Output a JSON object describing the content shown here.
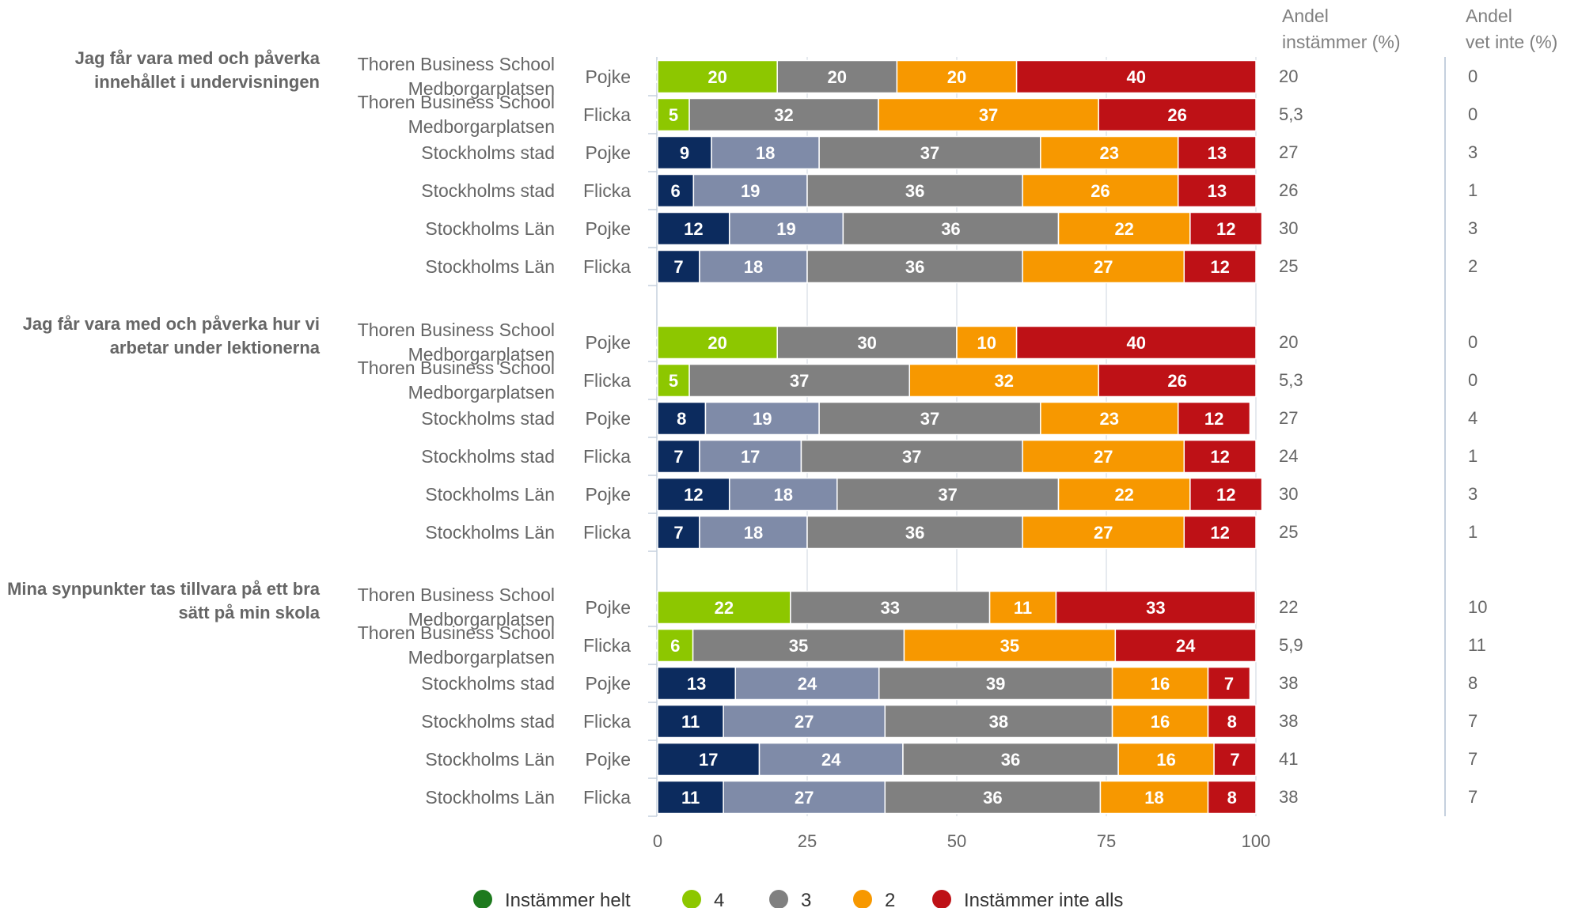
{
  "chart_data": {
    "type": "bar",
    "stacked": true,
    "orientation": "horizontal",
    "xlim": [
      0,
      100
    ],
    "xticks": [
      0,
      25,
      50,
      75,
      100
    ],
    "grid": true,
    "legend_position": "bottom",
    "column_headers": {
      "instammer": [
        "Andel",
        "instämmer (%)"
      ],
      "vet_inte": [
        "Andel",
        "vet inte (%)"
      ]
    },
    "series": [
      {
        "name": "Instämmer helt",
        "color": "#1e7a1e"
      },
      {
        "name": "4",
        "color": "#8dc700"
      },
      {
        "name": "3",
        "color": "#808080"
      },
      {
        "name": "2",
        "color": "#f79800"
      },
      {
        "name": "Instämmer inte alls",
        "color": "#be1116"
      }
    ],
    "bar_colors": {
      "thoren": [
        "#1e7a1e",
        "#8dc700",
        "#808080",
        "#f79800",
        "#be1116"
      ],
      "region": [
        "#0c2b5e",
        "#7f8ba8",
        "#808080",
        "#f79800",
        "#be1116"
      ]
    },
    "groups": [
      {
        "question": "Jag får vara med och påverka innehållet i undervisningen",
        "rows": [
          {
            "school": "Thoren Business School Medborgarplatsen",
            "gender": "Pojke",
            "scheme": "thoren",
            "values": [
              0,
              20,
              20,
              20,
              40
            ],
            "labels": [
              "0",
              "20",
              "20",
              "20",
              "40"
            ],
            "instammer": "20",
            "vet_inte": "0"
          },
          {
            "school": "Thoren Business School Medborgarplatsen",
            "gender": "Flicka",
            "scheme": "thoren",
            "values": [
              0,
              5.3,
              31.6,
              36.8,
              26.3
            ],
            "labels": [
              "0",
              "5",
              "32",
              "37",
              "26"
            ],
            "instammer": "5,3",
            "vet_inte": "0"
          },
          {
            "school": "Stockholms stad",
            "gender": "Pojke",
            "scheme": "region",
            "values": [
              9,
              18,
              37,
              23,
              13
            ],
            "labels": [
              "9",
              "18",
              "37",
              "23",
              "13"
            ],
            "instammer": "27",
            "vet_inte": "3"
          },
          {
            "school": "Stockholms stad",
            "gender": "Flicka",
            "scheme": "region",
            "values": [
              6,
              19,
              36,
              26,
              13
            ],
            "labels": [
              "6",
              "19",
              "36",
              "26",
              "13"
            ],
            "instammer": "26",
            "vet_inte": "1"
          },
          {
            "school": "Stockholms Län",
            "gender": "Pojke",
            "scheme": "region",
            "values": [
              12,
              19,
              36,
              22,
              12
            ],
            "labels": [
              "12",
              "19",
              "36",
              "22",
              "12"
            ],
            "instammer": "30",
            "vet_inte": "3"
          },
          {
            "school": "Stockholms Län",
            "gender": "Flicka",
            "scheme": "region",
            "values": [
              7,
              18,
              36,
              27,
              12
            ],
            "labels": [
              "7",
              "18",
              "36",
              "27",
              "12"
            ],
            "instammer": "25",
            "vet_inte": "2"
          }
        ]
      },
      {
        "question": "Jag får vara med och påverka hur vi arbetar under lektionerna",
        "rows": [
          {
            "school": "Thoren Business School Medborgarplatsen",
            "gender": "Pojke",
            "scheme": "thoren",
            "values": [
              0,
              20,
              30,
              10,
              40
            ],
            "labels": [
              "0",
              "20",
              "30",
              "10",
              "40"
            ],
            "instammer": "20",
            "vet_inte": "0"
          },
          {
            "school": "Thoren Business School Medborgarplatsen",
            "gender": "Flicka",
            "scheme": "thoren",
            "values": [
              0,
              5.3,
              36.8,
              31.6,
              26.3
            ],
            "labels": [
              "0",
              "5",
              "37",
              "32",
              "26"
            ],
            "instammer": "5,3",
            "vet_inte": "0"
          },
          {
            "school": "Stockholms stad",
            "gender": "Pojke",
            "scheme": "region",
            "values": [
              8,
              19,
              37,
              23,
              12
            ],
            "labels": [
              "8",
              "19",
              "37",
              "23",
              "12"
            ],
            "instammer": "27",
            "vet_inte": "4"
          },
          {
            "school": "Stockholms stad",
            "gender": "Flicka",
            "scheme": "region",
            "values": [
              7,
              17,
              37,
              27,
              12
            ],
            "labels": [
              "7",
              "17",
              "37",
              "27",
              "12"
            ],
            "instammer": "24",
            "vet_inte": "1"
          },
          {
            "school": "Stockholms Län",
            "gender": "Pojke",
            "scheme": "region",
            "values": [
              12,
              18,
              37,
              22,
              12
            ],
            "labels": [
              "12",
              "18",
              "37",
              "22",
              "12"
            ],
            "instammer": "30",
            "vet_inte": "3"
          },
          {
            "school": "Stockholms Län",
            "gender": "Flicka",
            "scheme": "region",
            "values": [
              7,
              18,
              36,
              27,
              12
            ],
            "labels": [
              "7",
              "18",
              "36",
              "27",
              "12"
            ],
            "instammer": "25",
            "vet_inte": "1"
          }
        ]
      },
      {
        "question": "Mina synpunkter tas tillvara på ett bra sätt på min skola",
        "rows": [
          {
            "school": "Thoren Business School Medborgarplatsen",
            "gender": "Pojke",
            "scheme": "thoren",
            "values": [
              0,
              22.2,
              33.3,
              11.1,
              33.3
            ],
            "labels": [
              "0",
              "22",
              "33",
              "11",
              "33"
            ],
            "instammer": "22",
            "vet_inte": "10"
          },
          {
            "school": "Thoren Business School Medborgarplatsen",
            "gender": "Flicka",
            "scheme": "thoren",
            "values": [
              0,
              5.9,
              35.3,
              35.3,
              23.5
            ],
            "labels": [
              "0",
              "6",
              "35",
              "35",
              "24"
            ],
            "instammer": "5,9",
            "vet_inte": "11"
          },
          {
            "school": "Stockholms stad",
            "gender": "Pojke",
            "scheme": "region",
            "values": [
              13,
              24,
              39,
              16,
              7
            ],
            "labels": [
              "13",
              "24",
              "39",
              "16",
              "7"
            ],
            "instammer": "38",
            "vet_inte": "8"
          },
          {
            "school": "Stockholms stad",
            "gender": "Flicka",
            "scheme": "region",
            "values": [
              11,
              27,
              38,
              16,
              8
            ],
            "labels": [
              "11",
              "27",
              "38",
              "16",
              "8"
            ],
            "instammer": "38",
            "vet_inte": "7"
          },
          {
            "school": "Stockholms Län",
            "gender": "Pojke",
            "scheme": "region",
            "values": [
              17,
              24,
              36,
              16,
              7
            ],
            "labels": [
              "17",
              "24",
              "36",
              "16",
              "7"
            ],
            "instammer": "41",
            "vet_inte": "7"
          },
          {
            "school": "Stockholms Län",
            "gender": "Flicka",
            "scheme": "region",
            "values": [
              11,
              27,
              36,
              18,
              8
            ],
            "labels": [
              "11",
              "27",
              "36",
              "18",
              "8"
            ],
            "instammer": "38",
            "vet_inte": "7"
          }
        ]
      }
    ]
  }
}
